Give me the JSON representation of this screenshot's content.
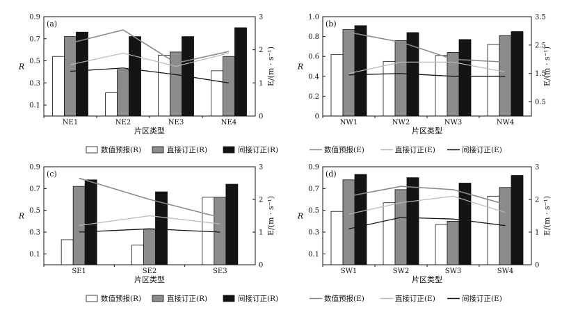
{
  "chart_data": [
    {
      "type": "bar",
      "panel_label": "(a)",
      "categories": [
        "NE1",
        "NE2",
        "NE3",
        "NE4"
      ],
      "xlabel": "片区类型",
      "ylabel": "R",
      "y2label": "E/(m · s⁻¹)",
      "ylim": [
        0,
        0.9
      ],
      "y2lim": [
        0,
        3
      ],
      "yticks": [
        "0.1",
        "0.3",
        "0.5",
        "0.7",
        "0.9"
      ],
      "y2ticks": [
        "0",
        "1",
        "2",
        "3"
      ],
      "bar_series": [
        {
          "name": "数值预报(R)",
          "values": [
            0.54,
            0.21,
            0.55,
            0.41
          ]
        },
        {
          "name": "直接订正(R)",
          "values": [
            0.72,
            0.42,
            0.58,
            0.54
          ]
        },
        {
          "name": "间接订正(R)",
          "values": [
            0.76,
            0.72,
            0.72,
            0.8
          ]
        }
      ],
      "line_series": [
        {
          "name": "数值预报(E)",
          "values": [
            2.2,
            2.6,
            1.6,
            1.95
          ]
        },
        {
          "name": "直接订正(E)",
          "values": [
            1.55,
            1.9,
            1.5,
            1.9
          ]
        },
        {
          "name": "间接订正(E)",
          "values": [
            1.35,
            1.45,
            1.25,
            1.0
          ]
        }
      ]
    },
    {
      "type": "bar",
      "panel_label": "(b)",
      "categories": [
        "NW1",
        "NW2",
        "NW3",
        "NW4"
      ],
      "xlabel": "片区类型",
      "ylabel": "R",
      "y2label": "E/(m · s⁻¹)",
      "ylim": [
        0,
        1.0
      ],
      "y2lim": [
        0,
        3.5
      ],
      "yticks": [
        "0",
        "0.2",
        "0.4",
        "0.6",
        "0.8",
        "1.0"
      ],
      "y2ticks": [
        "0.5",
        "1.5",
        "2.5",
        "3.5"
      ],
      "bar_series": [
        {
          "name": "数值预报(R)",
          "values": [
            0.62,
            0.55,
            0.61,
            0.72
          ]
        },
        {
          "name": "直接订正(R)",
          "values": [
            0.87,
            0.76,
            0.64,
            0.81
          ]
        },
        {
          "name": "间接订正(R)",
          "values": [
            0.91,
            0.84,
            0.77,
            0.85
          ]
        }
      ],
      "line_series": [
        {
          "name": "数值预报(E)",
          "values": [
            2.95,
            2.6,
            2.0,
            1.9
          ]
        },
        {
          "name": "直接订正(E)",
          "values": [
            1.5,
            1.9,
            1.9,
            1.55
          ]
        },
        {
          "name": "间接订正(E)",
          "values": [
            1.45,
            1.5,
            1.4,
            1.4
          ]
        }
      ]
    },
    {
      "type": "bar",
      "panel_label": "(c)",
      "categories": [
        "SE1",
        "SE2",
        "SE3"
      ],
      "xlabel": "片区类型",
      "ylabel": "R",
      "y2label": "E/(m · s⁻¹)",
      "ylim": [
        0,
        0.9
      ],
      "y2lim": [
        0,
        3
      ],
      "yticks": [
        "0.1",
        "0.3",
        "0.5",
        "0.7",
        "0.9"
      ],
      "y2ticks": [
        "0",
        "1",
        "2",
        "3"
      ],
      "bar_series": [
        {
          "name": "数值预报(R)",
          "values": [
            0.23,
            0.18,
            0.62
          ]
        },
        {
          "name": "直接订正(R)",
          "values": [
            0.72,
            0.33,
            0.62
          ]
        },
        {
          "name": "间接订正(R)",
          "values": [
            0.78,
            0.67,
            0.74
          ]
        }
      ],
      "line_series": [
        {
          "name": "数值预报(E)",
          "values": [
            2.65,
            2.0,
            1.45
          ]
        },
        {
          "name": "直接订正(E)",
          "values": [
            1.2,
            1.5,
            1.25
          ]
        },
        {
          "name": "间接订正(E)",
          "values": [
            1.0,
            1.1,
            1.0
          ]
        }
      ]
    },
    {
      "type": "bar",
      "panel_label": "(d)",
      "categories": [
        "SW1",
        "SW2",
        "SW3",
        "SW4"
      ],
      "xlabel": "片区类型",
      "ylabel": "R",
      "y2label": "E/(m · s⁻¹)",
      "ylim": [
        0,
        0.9
      ],
      "y2lim": [
        0,
        3
      ],
      "yticks": [
        "0.1",
        "0.3",
        "0.5",
        "0.7",
        "0.9"
      ],
      "y2ticks": [
        "0",
        "1",
        "2",
        "3"
      ],
      "bar_series": [
        {
          "name": "数值预报(R)",
          "values": [
            0.49,
            0.57,
            0.37,
            0.63
          ]
        },
        {
          "name": "直接订正(R)",
          "values": [
            0.78,
            0.69,
            0.4,
            0.71
          ]
        },
        {
          "name": "间接订正(R)",
          "values": [
            0.83,
            0.8,
            0.75,
            0.82
          ]
        }
      ],
      "line_series": [
        {
          "name": "数值预报(E)",
          "values": [
            2.1,
            2.4,
            2.3,
            1.85
          ]
        },
        {
          "name": "直接订正(E)",
          "values": [
            1.55,
            1.9,
            2.1,
            1.6
          ]
        },
        {
          "name": "间接订正(E)",
          "values": [
            1.1,
            1.45,
            1.4,
            1.2
          ]
        }
      ]
    }
  ],
  "legend": [
    {
      "label": "数值预报(R)",
      "kind": "bar",
      "color": "#ffffff"
    },
    {
      "label": "直接订正(R)",
      "kind": "bar",
      "color": "#8c8c8c"
    },
    {
      "label": "间接订正(R)",
      "kind": "bar",
      "color": "#141414"
    },
    {
      "label": "数值预报(E)",
      "kind": "line",
      "color": "#8a8a8a"
    },
    {
      "label": "直接订正(E)",
      "kind": "line",
      "color": "#b8b8b8"
    },
    {
      "label": "间接订正(E)",
      "kind": "line",
      "color": "#141414"
    }
  ],
  "colors": {
    "bar_fills": [
      "#ffffff",
      "#8c8c8c",
      "#141414"
    ],
    "line_strokes": [
      "#8a8a8a",
      "#b8b8b8",
      "#141414"
    ]
  }
}
